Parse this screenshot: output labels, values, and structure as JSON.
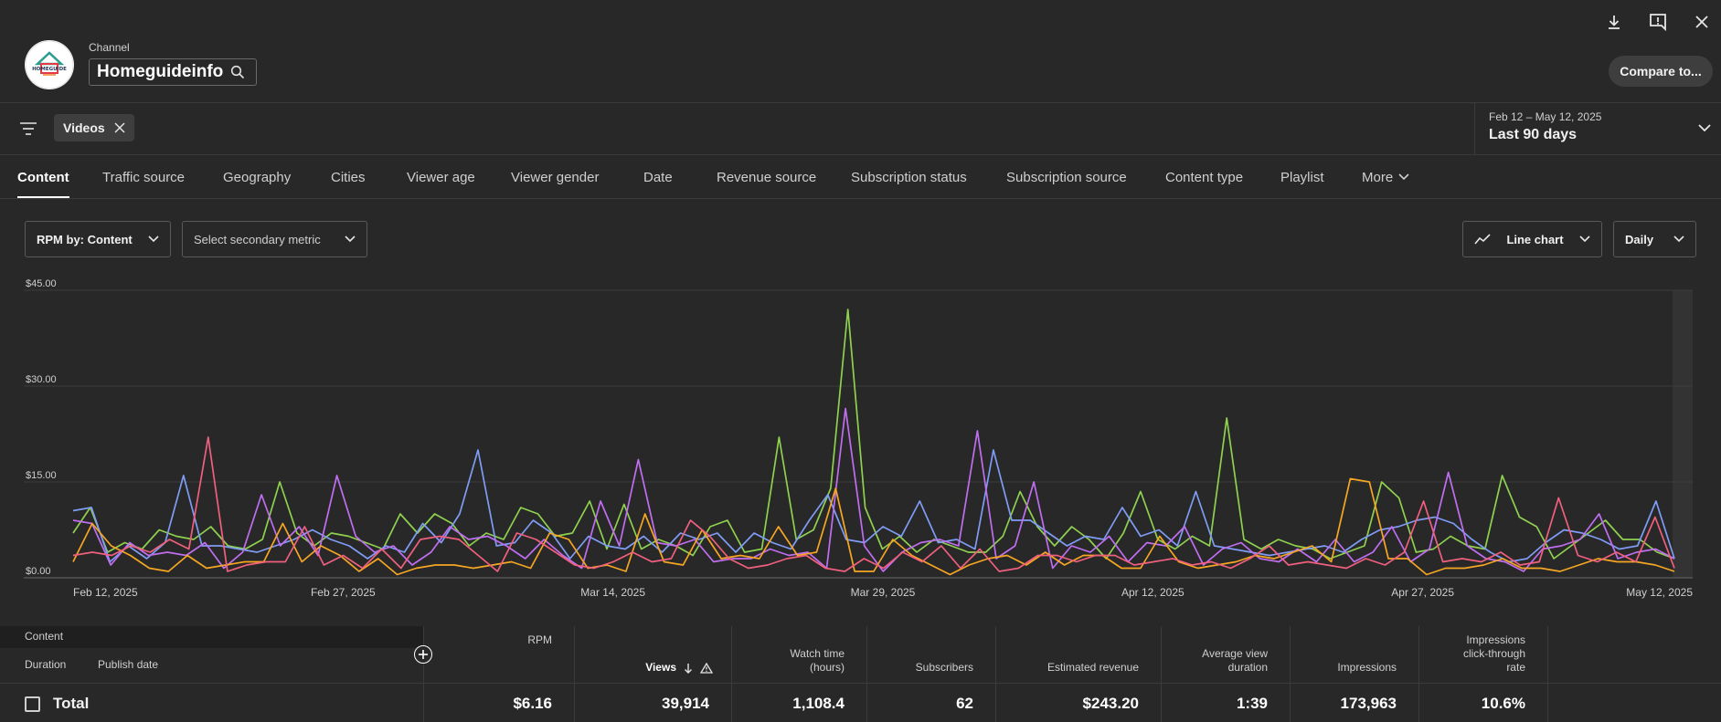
{
  "header": {
    "channel_label": "Channel",
    "channel_name": "Homeguideinfo",
    "avatar_text": "HOMEGUIDE",
    "compare_label": "Compare to..."
  },
  "icons": [
    "download-icon",
    "feedback-icon",
    "close-icon",
    "search-icon",
    "filter-icon",
    "chevron-down-icon",
    "line-chart-icon",
    "add-column-icon",
    "sort-down-icon",
    "warning-icon"
  ],
  "filter": {
    "chip_label": "Videos",
    "date_range": "Feb 12 – May 12, 2025",
    "date_label": "Last 90 days"
  },
  "tabs": [
    {
      "label": "Content",
      "active": true
    },
    {
      "label": "Traffic source"
    },
    {
      "label": "Geography"
    },
    {
      "label": "Cities"
    },
    {
      "label": "Viewer age"
    },
    {
      "label": "Viewer gender"
    },
    {
      "label": "Date"
    },
    {
      "label": "Revenue source"
    },
    {
      "label": "Subscription status"
    },
    {
      "label": "Subscription source"
    },
    {
      "label": "Content type"
    },
    {
      "label": "Playlist"
    },
    {
      "label": "More"
    }
  ],
  "controls": {
    "metric": "RPM by: Content",
    "secondary": "Select secondary metric",
    "chart_type": "Line chart",
    "interval": "Daily"
  },
  "colors": {
    "background": "#282828",
    "series": [
      "#8fd14f",
      "#7f9cf5",
      "#c06ef0",
      "#f5a623",
      "#f0607e"
    ]
  },
  "chart_data": {
    "type": "line",
    "y_ticks": [
      "$45.00",
      "$30.00",
      "$15.00",
      "$0.00"
    ],
    "ylim": [
      0,
      45
    ],
    "x_ticks": [
      "Feb 12, 2025",
      "Feb 27, 2025",
      "Mar 14, 2025",
      "Mar 29, 2025",
      "Apr 12, 2025",
      "Apr 27, 2025",
      "May 12, 2025"
    ],
    "x_range": [
      "2025-02-12",
      "2025-05-12"
    ],
    "grid": true,
    "series": [
      {
        "color": "#8fd14f",
        "values": [
          7.0,
          11.0,
          4.0,
          5.5,
          4.5,
          7.5,
          6.5,
          6.0,
          8.0,
          5.0,
          4.5,
          6.0,
          15.0,
          7.0,
          5.0,
          7.0,
          6.5,
          5.5,
          4.5,
          10.0,
          7.0,
          10.0,
          8.5,
          5.0,
          7.0,
          6.0,
          11.0,
          10.0,
          6.5,
          7.0,
          12.0,
          4.5,
          11.5,
          4.5,
          6.0,
          5.0,
          3.5,
          8.0,
          9.0,
          4.0,
          4.5,
          22.0,
          6.0,
          7.5,
          14.0,
          42.0,
          11.0,
          4.5,
          6.5,
          4.0,
          6.0,
          5.0,
          4.0,
          4.0,
          6.5,
          13.5,
          8.0,
          5.0,
          8.0,
          6.0,
          3.0,
          7.0,
          13.5,
          6.0,
          4.5,
          6.5,
          5.0,
          25.0,
          6.0,
          4.5,
          6.0,
          5.0,
          4.5,
          3.0,
          4.0,
          5.0,
          15.0,
          12.5,
          4.0,
          4.5,
          6.5,
          5.0,
          4.5,
          16.0,
          9.5,
          8.0,
          3.0,
          5.0,
          7.0,
          9.0,
          6.0,
          6.0,
          4.0,
          3.0
        ]
      },
      {
        "color": "#7f9cf5",
        "values": [
          10.5,
          11.0,
          2.5,
          5.0,
          3.0,
          5.5,
          16.0,
          5.0,
          5.0,
          4.5,
          4.0,
          5.0,
          6.0,
          7.5,
          6.0,
          5.0,
          3.0,
          5.0,
          4.0,
          8.5,
          5.5,
          10.0,
          20.0,
          5.0,
          5.5,
          9.0,
          7.0,
          3.0,
          6.5,
          5.0,
          4.5,
          6.5,
          4.0,
          7.0,
          6.0,
          7.0,
          4.0,
          7.0,
          5.5,
          4.5,
          9.0,
          13.0,
          6.0,
          5.5,
          8.0,
          6.5,
          12.0,
          5.5,
          6.0,
          4.5,
          20.0,
          9.0,
          9.0,
          7.0,
          5.0,
          6.5,
          6.0,
          11.0,
          6.5,
          7.5,
          5.0,
          13.5,
          5.0,
          4.5,
          4.0,
          3.5,
          4.0,
          4.5,
          5.0,
          4.0,
          6.0,
          7.5,
          8.0,
          9.0,
          9.5,
          8.5,
          6.0,
          4.0,
          2.5,
          3.0,
          5.5,
          7.5,
          7.0,
          6.0,
          4.5,
          5.0,
          12.0,
          3.0
        ]
      },
      {
        "color": "#c06ef0",
        "values": [
          9.0,
          8.5,
          2.0,
          5.5,
          3.5,
          4.0,
          3.5,
          5.5,
          1.5,
          4.0,
          13.0,
          5.0,
          8.0,
          3.5,
          16.0,
          6.5,
          4.0,
          5.0,
          2.0,
          4.0,
          8.0,
          6.0,
          6.5,
          5.0,
          3.0,
          6.0,
          3.5,
          1.5,
          12.0,
          5.0,
          18.5,
          5.5,
          5.0,
          6.0,
          2.5,
          3.0,
          3.0,
          4.5,
          3.5,
          4.0,
          1.5,
          26.5,
          5.0,
          1.0,
          4.0,
          5.5,
          6.0,
          5.0,
          23.0,
          3.0,
          5.0,
          15.0,
          1.5,
          5.0,
          4.0,
          6.5,
          2.5,
          5.5,
          5.0,
          8.0,
          2.0,
          4.5,
          5.5,
          3.0,
          2.5,
          4.5,
          2.5,
          6.0,
          2.5,
          4.0,
          8.0,
          2.5,
          4.5,
          16.5,
          5.0,
          3.0,
          2.5,
          1.0,
          4.5,
          5.0,
          6.0,
          10.0,
          3.0,
          4.0,
          4.5,
          3.0
        ]
      },
      {
        "color": "#f5a623",
        "values": [
          2.5,
          8.5,
          5.0,
          3.5,
          1.5,
          1.0,
          3.5,
          1.5,
          2.0,
          2.5,
          2.5,
          8.5,
          2.5,
          5.0,
          3.5,
          1.0,
          3.0,
          0.5,
          1.5,
          2.0,
          2.0,
          1.5,
          2.0,
          2.5,
          1.5,
          7.0,
          6.0,
          1.5,
          2.0,
          1.0,
          10.0,
          2.5,
          2.0,
          7.5,
          3.0,
          3.5,
          3.0,
          8.0,
          3.5,
          4.0,
          14.0,
          1.0,
          1.0,
          6.0,
          3.5,
          2.0,
          0.5,
          2.0,
          3.0,
          3.5,
          2.0,
          4.0,
          2.0,
          3.5,
          3.5,
          1.5,
          1.5,
          6.5,
          2.5,
          1.5,
          2.0,
          2.5,
          3.5,
          3.0,
          4.0,
          5.0,
          2.5,
          15.5,
          15.0,
          3.0,
          3.0,
          0.5,
          1.5,
          1.5,
          2.0,
          3.0,
          1.5,
          1.5,
          1.0,
          2.0,
          3.0,
          2.5,
          2.5,
          2.0,
          1.0
        ]
      },
      {
        "color": "#f0607e",
        "values": [
          3.5,
          4.0,
          3.5,
          5.0,
          4.0,
          6.0,
          4.5,
          22.0,
          1.0,
          2.0,
          2.5,
          2.5,
          8.0,
          2.0,
          3.5,
          1.5,
          4.5,
          1.5,
          6.0,
          6.5,
          6.0,
          3.5,
          1.0,
          7.0,
          6.0,
          4.0,
          2.0,
          1.5,
          2.5,
          4.0,
          2.5,
          3.0,
          9.0,
          6.5,
          3.0,
          1.5,
          2.0,
          3.0,
          3.5,
          1.5,
          1.0,
          3.0,
          1.5,
          4.0,
          2.5,
          5.0,
          1.5,
          4.5,
          1.0,
          1.5,
          3.5,
          3.5,
          2.5,
          3.5,
          3.5,
          2.0,
          2.5,
          3.0,
          2.0,
          2.5,
          1.5,
          3.0,
          5.0,
          2.0,
          2.5,
          2.0,
          1.5,
          3.0,
          2.0,
          4.0,
          12.0,
          2.5,
          3.0,
          2.5,
          4.0,
          2.0,
          2.5,
          12.5,
          3.5,
          2.5,
          4.0,
          2.5,
          9.5,
          1.5
        ]
      }
    ]
  },
  "table": {
    "content_label": "Content",
    "sub_cols": [
      "Duration",
      "Publish date"
    ],
    "columns": [
      {
        "line1": "",
        "line2": "",
        "line3": "RPM"
      },
      {
        "line1": "",
        "line2": "",
        "line3": "Views"
      },
      {
        "line1": "",
        "line2": "Watch time",
        "line3": "(hours)"
      },
      {
        "line1": "",
        "line2": "",
        "line3": "Subscribers"
      },
      {
        "line1": "",
        "line2": "",
        "line3": "Estimated revenue"
      },
      {
        "line1": "",
        "line2": "Average view",
        "line3": "duration"
      },
      {
        "line1": "",
        "line2": "",
        "line3": "Impressions"
      },
      {
        "line1": "Impressions",
        "line2": "click-through",
        "line3": "rate"
      }
    ],
    "total_label": "Total",
    "totals": [
      "$6.16",
      "39,914",
      "1,108.4",
      "62",
      "$243.20",
      "1:39",
      "173,963",
      "10.6%"
    ]
  }
}
